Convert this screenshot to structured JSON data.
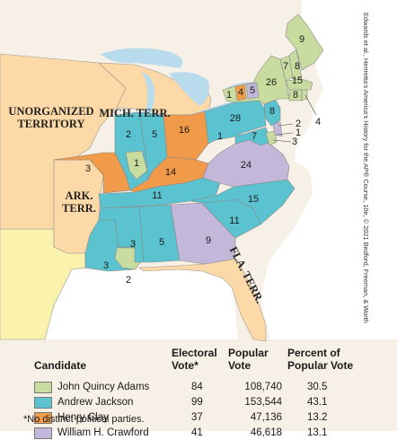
{
  "credit": "Edwards et al., Henretta's America's History for the AP® Course, 10e, © 2021 Bedford, Freeman, & Worth",
  "colors": {
    "adams": "#c9dca0",
    "jackson": "#5bc3cf",
    "clay": "#f19a4a",
    "crawford": "#c4b8da",
    "territory": "#fcd9a6",
    "foreign": "#fbf2ad",
    "lakes": "#b8dbed",
    "background": "#ffffff"
  },
  "regions": {
    "unorganized": "UNORGANIZED\nTERRITORY",
    "mich": "MICH. TERR.",
    "ark": "ARK.\nTERR.",
    "fla": "FLA. TERR."
  },
  "votes": {
    "maine": "9",
    "nh": "8",
    "vt": "7",
    "ma": "15",
    "ri": "4",
    "ct": "8",
    "ny_adams": "26",
    "ny_jackson": "1",
    "ny_clay": "4",
    "ny_crawford": "5",
    "nj": "8",
    "pa": "28",
    "de_crawford": "2",
    "de_adams": "1",
    "md_jackson": "7",
    "md_adams": "3",
    "md_crawford": "1",
    "oh": "16",
    "in": "5",
    "il_jackson": "2",
    "il_adams": "1",
    "mo": "3",
    "ky": "14",
    "tn": "11",
    "va": "24",
    "nc": "15",
    "sc": "11",
    "ga": "9",
    "al": "5",
    "ms": "3",
    "la_jackson": "3",
    "la_adams": "2"
  },
  "legend": {
    "headers": {
      "candidate": "Candidate",
      "electoral": "Electoral\nVote*",
      "popular": "Popular\nVote",
      "percent": "Percent of\nPopular Vote"
    },
    "rows": [
      {
        "name": "John Quincy Adams",
        "electoral": "84",
        "popular": "108,740",
        "percent": "30.5",
        "color": "#c9dca0"
      },
      {
        "name": "Andrew Jackson",
        "electoral": "99",
        "popular": "153,544",
        "percent": "43.1",
        "color": "#5bc3cf"
      },
      {
        "name": "Henry Clay",
        "electoral": "37",
        "popular": "47,136",
        "percent": "13.2",
        "color": "#f19a4a"
      },
      {
        "name": "William H. Crawford",
        "electoral": "41",
        "popular": "46,618",
        "percent": "13.1",
        "color": "#c4b8da"
      }
    ],
    "note": "*No distinct political parties."
  }
}
